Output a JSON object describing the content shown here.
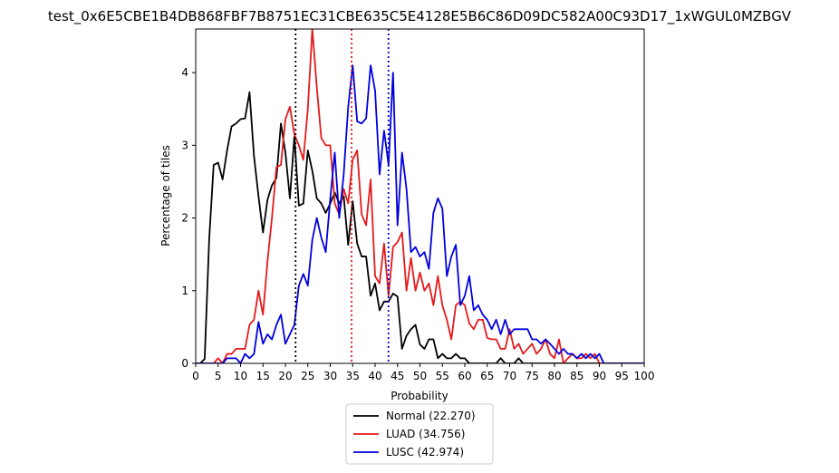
{
  "chart_data": {
    "type": "line",
    "title": "test_0x6E5CBE1B4DB868FBF7B8751EC31CBE635C5E4128E5B6C86D09DC582A00C93D17_1xWGUL0MZBGV",
    "xlabel": "Probability",
    "ylabel": "Percentage of tiles",
    "xlim": [
      0,
      100
    ],
    "ylim": [
      0,
      4.6
    ],
    "xticks": [
      0,
      5,
      10,
      15,
      20,
      25,
      30,
      35,
      40,
      45,
      50,
      55,
      60,
      65,
      70,
      75,
      80,
      85,
      90,
      95,
      100
    ],
    "yticks": [
      0,
      1,
      2,
      3,
      4
    ],
    "grid": false,
    "legend_placement": "below",
    "x": [
      0,
      1,
      2,
      3,
      4,
      5,
      6,
      7,
      8,
      9,
      10,
      11,
      12,
      13,
      14,
      15,
      16,
      17,
      18,
      19,
      20,
      21,
      22,
      23,
      24,
      25,
      26,
      27,
      28,
      29,
      30,
      31,
      32,
      33,
      34,
      35,
      36,
      37,
      38,
      39,
      40,
      41,
      42,
      43,
      44,
      45,
      46,
      47,
      48,
      49,
      50,
      51,
      52,
      53,
      54,
      55,
      56,
      57,
      58,
      59,
      60,
      61,
      62,
      63,
      64,
      65,
      66,
      67,
      68,
      69,
      70,
      71,
      72,
      73,
      74,
      75,
      76,
      77,
      78,
      79,
      80,
      81,
      82,
      83,
      84,
      85,
      86,
      87,
      88,
      89,
      90,
      91,
      92,
      93,
      94,
      95,
      96,
      97,
      98,
      99,
      100
    ],
    "series": [
      {
        "name": "Normal (22.270)",
        "color": "#000000",
        "values": [
          0,
          0,
          0.06,
          1.7,
          2.73,
          2.76,
          2.53,
          2.93,
          3.26,
          3.3,
          3.36,
          3.37,
          3.73,
          2.85,
          2.3,
          1.8,
          2.25,
          2.45,
          2.55,
          3.3,
          2.9,
          2.27,
          3.12,
          2.17,
          2.2,
          2.93,
          2.65,
          2.27,
          2.2,
          2.07,
          2.2,
          2.35,
          2.2,
          2.3,
          1.63,
          2.23,
          1.65,
          1.47,
          1.47,
          0.93,
          1.1,
          0.73,
          0.85,
          0.85,
          0.96,
          0.92,
          0.2,
          0.38,
          0.47,
          0.53,
          0.26,
          0.2,
          0.33,
          0.33,
          0.07,
          0.13,
          0.07,
          0.07,
          0.13,
          0.07,
          0.07,
          0,
          0,
          0,
          0,
          0,
          0,
          0,
          0.07,
          0,
          0,
          0,
          0.07,
          0,
          0,
          0,
          0,
          0,
          0,
          0,
          0,
          0,
          0,
          0,
          0,
          0,
          0,
          0,
          0,
          0,
          0,
          0,
          0,
          0,
          0,
          0,
          0,
          0,
          0,
          0,
          0
        ]
      },
      {
        "name": "LUAD (34.756)",
        "color": "#e41a1c",
        "values": [
          0,
          0,
          0,
          0,
          0,
          0.07,
          0,
          0.13,
          0.13,
          0.2,
          0.2,
          0.2,
          0.53,
          0.6,
          1.0,
          0.67,
          1.4,
          2.0,
          2.7,
          2.73,
          3.36,
          3.53,
          3.15,
          3.0,
          2.8,
          3.5,
          4.6,
          3.8,
          3.1,
          3.0,
          3.0,
          2.2,
          2.05,
          2.4,
          2.2,
          2.8,
          2.93,
          2.05,
          1.9,
          2.53,
          1.2,
          1.1,
          1.65,
          0.93,
          1.6,
          1.67,
          1.8,
          1.0,
          1.45,
          1.0,
          1.25,
          1.0,
          1.1,
          0.8,
          1.2,
          0.8,
          0.6,
          0.33,
          0.8,
          0.85,
          0.8,
          0.55,
          0.47,
          0.6,
          0.6,
          0.35,
          0.33,
          0.33,
          0.2,
          0.2,
          0.47,
          0.2,
          0.27,
          0.13,
          0.2,
          0.27,
          0.13,
          0.2,
          0.33,
          0.13,
          0.07,
          0.33,
          0,
          0.07,
          0.13,
          0.07,
          0.07,
          0.13,
          0.07,
          0.13,
          0,
          0,
          0,
          0,
          0,
          0,
          0,
          0,
          0,
          0,
          0
        ]
      },
      {
        "name": "LUSC (42.974)",
        "color": "#0000dd",
        "values": [
          0,
          0,
          0,
          0,
          0,
          0,
          0,
          0.07,
          0.07,
          0.07,
          0,
          0.13,
          0.07,
          0.13,
          0.57,
          0.27,
          0.4,
          0.33,
          0.53,
          0.67,
          0.27,
          0.4,
          0.53,
          1.07,
          1.23,
          1.07,
          1.7,
          2.0,
          1.73,
          1.53,
          2.27,
          2.9,
          2.0,
          2.6,
          3.53,
          4.1,
          3.33,
          3.3,
          3.37,
          4.1,
          3.75,
          2.6,
          3.2,
          2.73,
          4.0,
          1.9,
          2.9,
          2.4,
          1.53,
          1.6,
          1.47,
          1.53,
          1.3,
          2.07,
          2.27,
          2.13,
          1.2,
          1.47,
          1.63,
          0.8,
          0.93,
          1.2,
          0.73,
          0.8,
          0.67,
          0.6,
          0.47,
          0.6,
          0.4,
          0.6,
          0.4,
          0.47,
          0.47,
          0.47,
          0.47,
          0.33,
          0.33,
          0.27,
          0.33,
          0.27,
          0.2,
          0.13,
          0.2,
          0.13,
          0.13,
          0.07,
          0.13,
          0.07,
          0.13,
          0.07,
          0.13,
          0,
          0,
          0,
          0,
          0,
          0,
          0,
          0,
          0,
          0
        ]
      }
    ],
    "vlines": [
      {
        "x": 22.27,
        "color": "#000000",
        "style": "dotted"
      },
      {
        "x": 34.756,
        "color": "#e41a1c",
        "style": "dotted"
      },
      {
        "x": 42.974,
        "color": "#0000dd",
        "style": "dotted"
      }
    ]
  }
}
